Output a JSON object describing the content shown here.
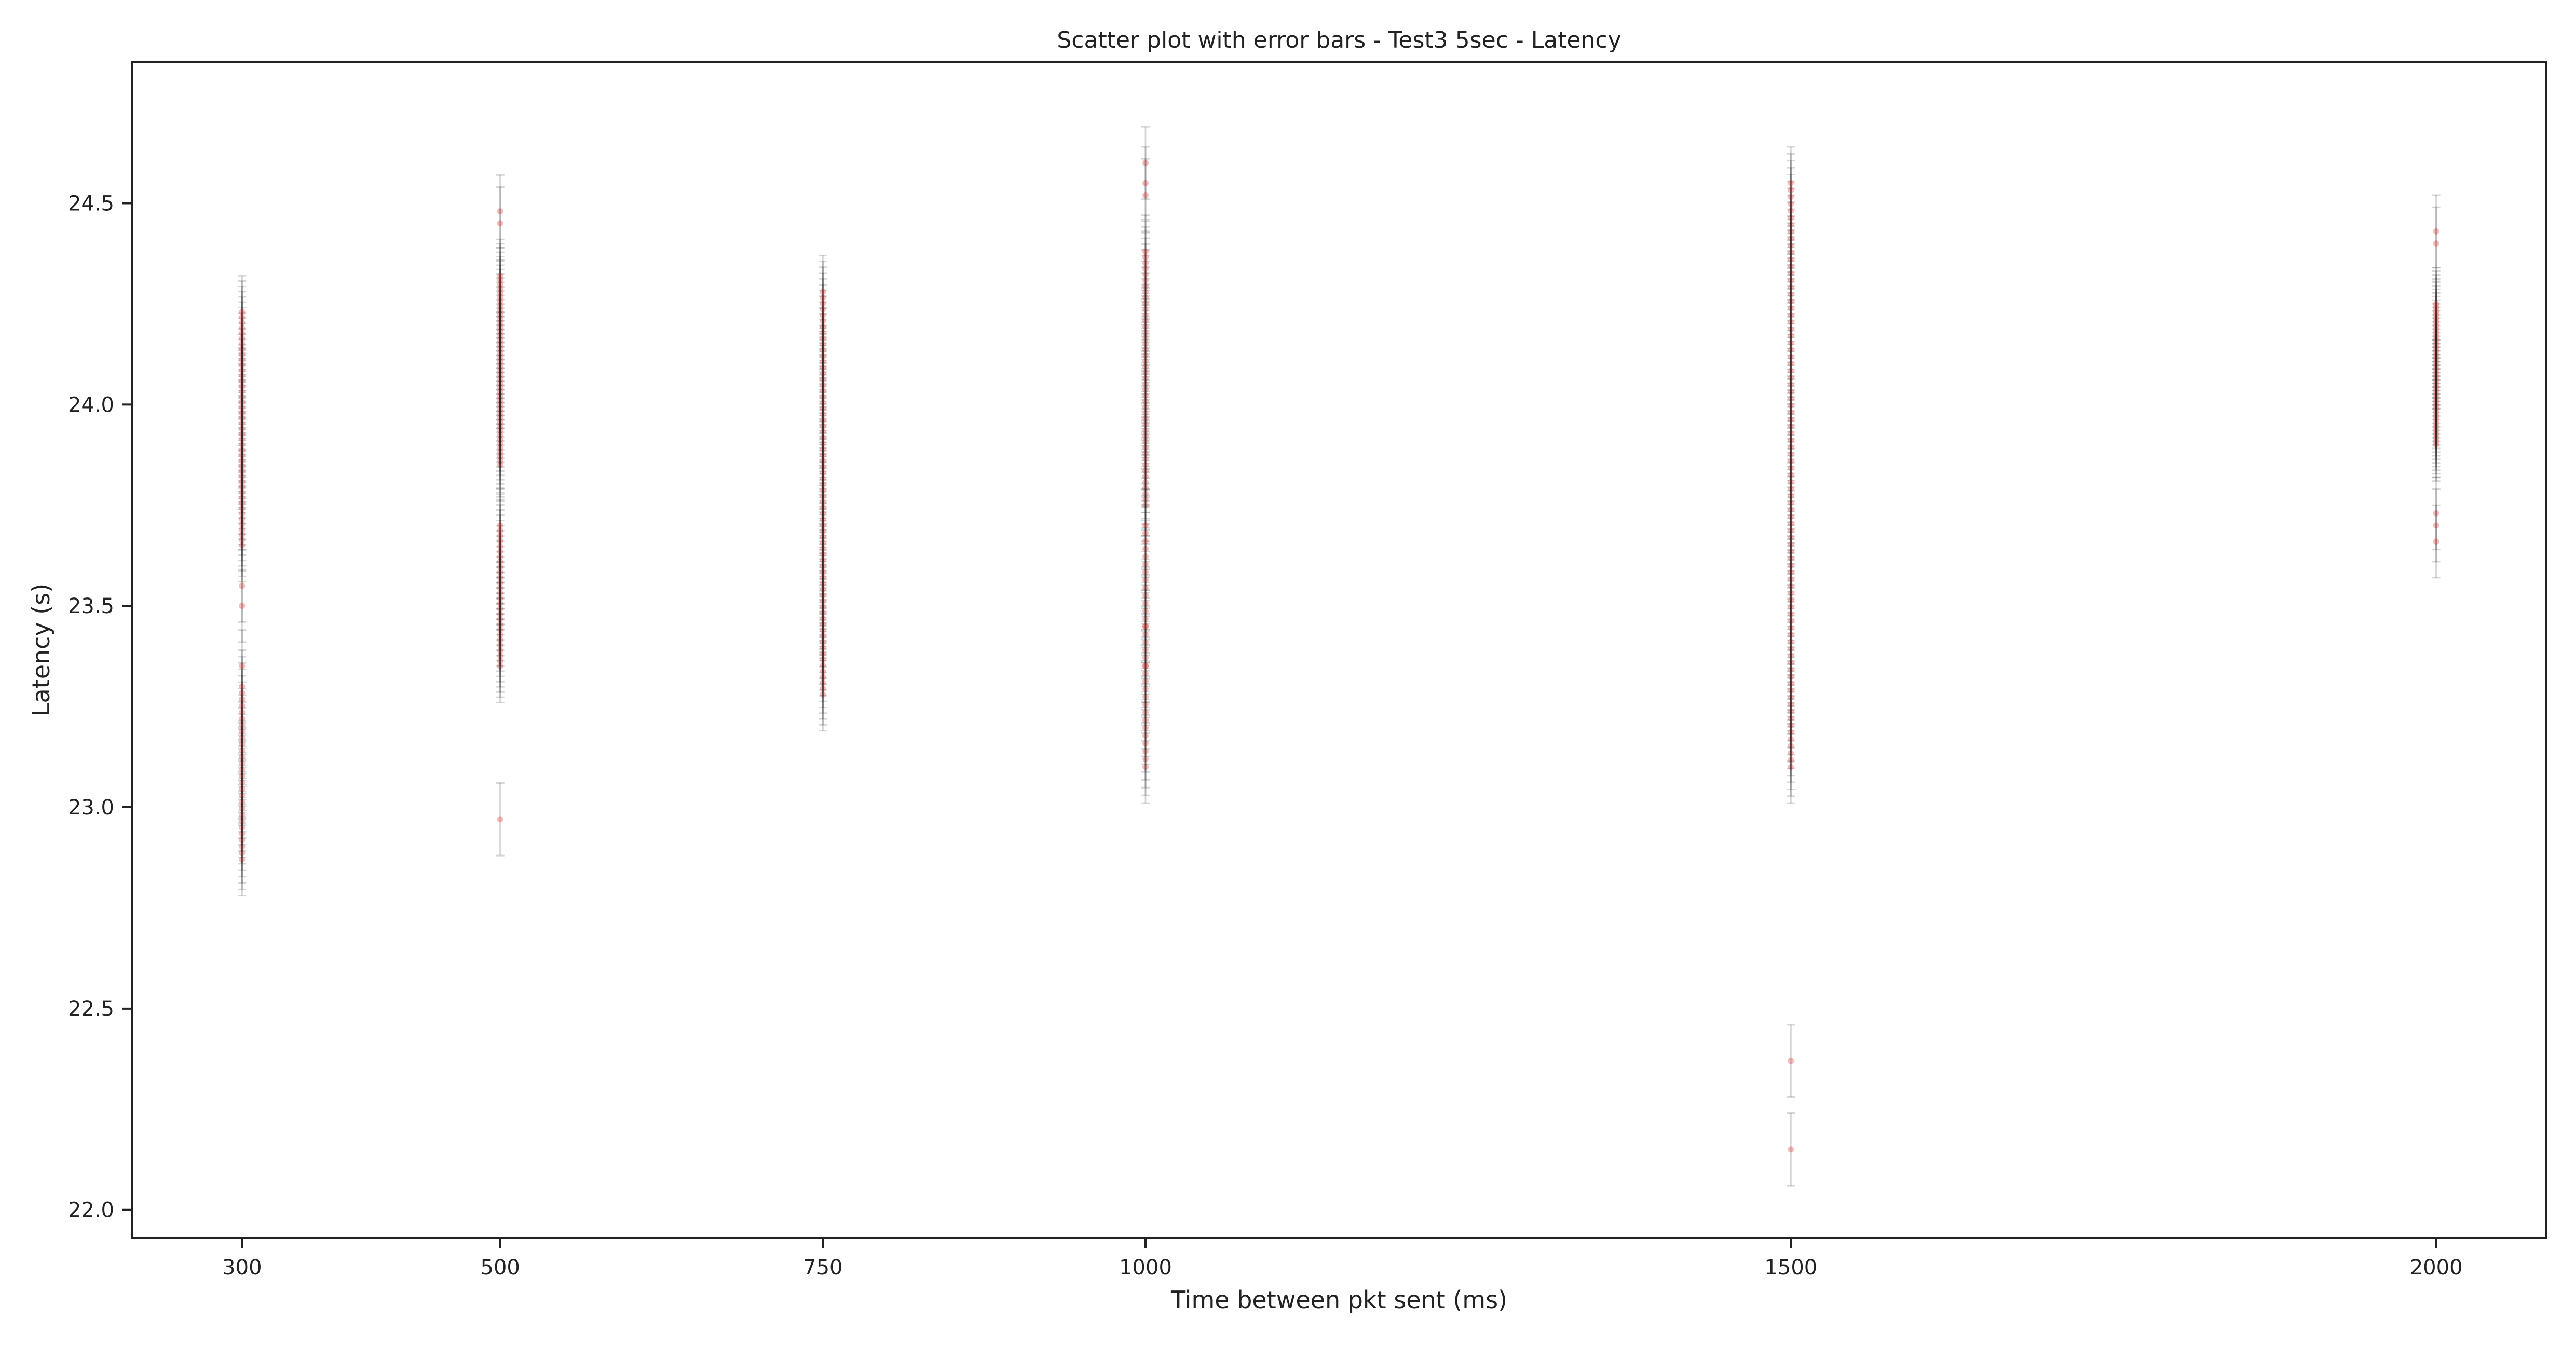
{
  "chart_data": {
    "type": "scatter",
    "title": "Scatter plot with error bars - Test3 5sec - Latency",
    "xlabel": "Time between pkt sent (ms)",
    "ylabel": "Latency (s)",
    "x_ticks": [
      300,
      500,
      750,
      1000,
      1500,
      2000
    ],
    "x_tick_labels": [
      "300",
      "500",
      "750",
      "1000",
      "1500",
      "2000"
    ],
    "y_ticks": [
      22.0,
      22.5,
      23.0,
      23.5,
      24.0,
      24.5
    ],
    "y_tick_labels": [
      "22.0",
      "22.5",
      "23.0",
      "23.5",
      "24.0",
      "24.5"
    ],
    "xlim": [
      215,
      2085
    ],
    "ylim": [
      21.93,
      24.85
    ],
    "grid": false,
    "marker_color": "#e02020",
    "errorbar_color": "#222222",
    "errorbar_halfwidth": 0.09,
    "series": [
      {
        "x": 300,
        "clusters": [
          {
            "from": 23.65,
            "to": 24.23,
            "count": 45
          },
          {
            "from": 22.87,
            "to": 23.3,
            "count": 28
          }
        ],
        "points": [
          23.55,
          23.5,
          23.35
        ]
      },
      {
        "x": 500,
        "clusters": [
          {
            "from": 23.85,
            "to": 24.32,
            "count": 45
          },
          {
            "from": 23.35,
            "to": 23.7,
            "count": 28
          }
        ],
        "points": [
          24.48,
          24.45,
          22.97
        ]
      },
      {
        "x": 750,
        "clusters": [
          {
            "from": 23.28,
            "to": 24.28,
            "count": 70
          }
        ],
        "points": []
      },
      {
        "x": 1000,
        "clusters": [
          {
            "from": 23.75,
            "to": 24.38,
            "count": 45
          },
          {
            "from": 23.1,
            "to": 23.7,
            "count": 32
          }
        ],
        "points": [
          24.6,
          24.55,
          24.52,
          23.45,
          23.35
        ]
      },
      {
        "x": 1500,
        "clusters": [
          {
            "from": 23.1,
            "to": 24.55,
            "count": 85
          }
        ],
        "points": [
          22.37,
          22.15
        ]
      },
      {
        "x": 2000,
        "clusters": [
          {
            "from": 23.9,
            "to": 24.25,
            "count": 40
          }
        ],
        "points": [
          24.43,
          24.4,
          23.73,
          23.7,
          23.66
        ]
      }
    ]
  }
}
